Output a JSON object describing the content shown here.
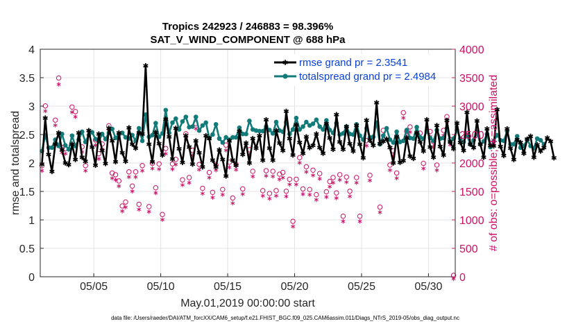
{
  "chart_data": {
    "type": "line",
    "title_line1": "Tropics 242923 / 246883 = 98.396%",
    "title_line2": "SAT_V_WIND_COMPONENT @ 688 hPa",
    "xlabel": "May.01,2019 00:00:00 start",
    "ylabel_left": "rmse and totalspread",
    "ylabel_right": "# of obs: o=possible; ∗=assimilated",
    "footnote": "data file: /Users/raeder/DAI/ATM_forcXX/CAM6_setup/f.e21.FHIST_BGC.f09_025.CAM6assim.011/Diags_NTrS_2019-05/obs_diag_output.nc",
    "xlim": [
      1,
      32
    ],
    "ylim_left": [
      0,
      4
    ],
    "ylim_right": [
      0,
      4000
    ],
    "x_ticks": [
      {
        "x": 5,
        "label": "05/05"
      },
      {
        "x": 10,
        "label": "05/10"
      },
      {
        "x": 15,
        "label": "05/15"
      },
      {
        "x": 20,
        "label": "05/20"
      },
      {
        "x": 25,
        "label": "05/25"
      },
      {
        "x": 30,
        "label": "05/30"
      }
    ],
    "y_ticks_left": [
      "0",
      "0.5",
      "1",
      "1.5",
      "2",
      "2.5",
      "3",
      "3.5",
      "4"
    ],
    "y_ticks_right": [
      "0",
      "500",
      "1000",
      "1500",
      "2000",
      "2500",
      "3000",
      "3500",
      "4000"
    ],
    "grid": true,
    "legend_position": "top-right",
    "x_start": 1.125,
    "x_step": 0.25,
    "series": [
      {
        "name": "rmse grand pr = 2.3541",
        "color": "#000000",
        "marker": "asterisk",
        "axis": "left",
        "values": [
          1.98,
          2.79,
          2.15,
          1.85,
          2.33,
          2.53,
          2.23,
          2.0,
          1.97,
          2.33,
          2.06,
          2.53,
          2.1,
          2.03,
          2.57,
          2.28,
          1.96,
          2.51,
          2.22,
          1.99,
          2.61,
          2.39,
          2.02,
          2.53,
          2.18,
          2.03,
          2.62,
          2.33,
          2.26,
          2.53,
          2.51,
          3.71,
          2.33,
          2.02,
          2.54,
          2.34,
          2.14,
          2.77,
          2.46,
          2.07,
          2.61,
          2.25,
          2.01,
          2.48,
          2.28,
          1.98,
          2.39,
          2.18,
          1.93,
          2.48,
          2.43,
          2.05,
          1.93,
          2.23,
          2.06,
          1.77,
          2.39,
          2.05,
          1.96,
          2.56,
          2.15,
          2.35,
          2.0,
          2.43,
          2.26,
          2.48,
          2.05,
          2.76,
          2.26,
          2.05,
          2.57,
          2.35,
          2.22,
          2.91,
          2.43,
          2.14,
          2.67,
          2.36,
          2.17,
          2.46,
          2.27,
          2.31,
          2.51,
          2.27,
          2.17,
          2.69,
          2.44,
          2.24,
          2.85,
          2.37,
          2.24,
          2.64,
          2.34,
          2.21,
          2.66,
          2.33,
          2.09,
          2.75,
          2.4,
          2.31,
          3.06,
          2.34,
          2.38,
          2.42,
          2.27,
          2.0,
          2.46,
          2.01,
          2.04,
          2.44,
          2.12,
          2.08,
          2.53,
          2.37,
          2.21,
          2.76,
          2.28,
          2.1,
          2.66,
          2.29,
          2.14,
          2.75,
          2.37,
          2.25,
          2.7,
          2.36,
          2.22,
          2.89,
          2.33,
          2.27,
          2.74,
          2.33,
          2.1,
          2.6,
          2.31,
          2.3,
          2.94,
          2.29,
          2.13,
          2.6,
          2.26,
          2.06,
          2.41,
          2.36,
          2.17,
          2.42,
          2.47,
          2.1,
          2.32,
          2.21,
          2.27,
          2.44,
          2.38,
          2.09
        ]
      },
      {
        "name": "totalspread grand pr = 2.4984",
        "color": "#127a78",
        "marker": "circle",
        "axis": "left",
        "values": [
          2.21,
          2.49,
          2.27,
          2.27,
          2.41,
          2.3,
          2.51,
          2.31,
          2.24,
          2.48,
          2.3,
          2.41,
          2.55,
          2.37,
          2.49,
          2.54,
          2.42,
          2.38,
          2.51,
          2.42,
          2.53,
          2.6,
          2.44,
          2.5,
          2.53,
          2.45,
          2.43,
          2.49,
          2.39,
          2.61,
          2.39,
          2.85,
          2.46,
          2.49,
          2.7,
          2.46,
          2.52,
          2.93,
          2.53,
          2.71,
          2.78,
          2.59,
          2.73,
          2.81,
          2.63,
          2.64,
          2.81,
          2.57,
          2.66,
          2.71,
          2.44,
          2.5,
          2.68,
          2.43,
          2.36,
          2.45,
          2.41,
          2.45,
          2.45,
          2.62,
          2.51,
          2.51,
          2.74,
          2.59,
          2.57,
          2.56,
          2.56,
          2.64,
          2.58,
          2.52,
          2.72,
          2.57,
          2.55,
          2.72,
          2.51,
          2.59,
          2.79,
          2.59,
          2.64,
          2.72,
          2.66,
          2.69,
          2.76,
          2.64,
          2.59,
          2.75,
          2.58,
          2.53,
          2.7,
          2.5,
          2.52,
          2.64,
          2.51,
          2.5,
          2.68,
          2.48,
          2.41,
          2.61,
          2.45,
          2.46,
          2.71,
          2.33,
          2.48,
          2.61,
          2.41,
          2.36,
          2.55,
          2.37,
          2.39,
          2.58,
          2.44,
          2.43,
          2.63,
          2.45,
          2.43,
          2.56,
          2.44,
          2.39,
          2.58,
          2.43,
          2.44,
          2.61,
          2.37,
          2.43,
          2.58,
          2.43,
          2.37,
          2.49,
          2.33,
          2.4,
          2.55,
          2.33,
          2.38,
          2.51,
          2.28,
          2.38,
          2.49,
          2.4,
          2.39,
          2.56,
          2.33,
          2.33,
          2.47,
          2.27,
          2.3,
          2.41,
          2.3,
          2.26,
          2.43,
          2.4,
          2.33
        ]
      },
      {
        "name": "possible",
        "color": "#cc1166",
        "marker": "open-circle",
        "axis": "right",
        "points": [
          [
            1.125,
            1930
          ],
          [
            1.38,
            2980
          ],
          [
            2.125,
            2730
          ],
          [
            2.38,
            3470
          ],
          [
            2.625,
            2250
          ],
          [
            2.875,
            2230
          ],
          [
            3.375,
            2960
          ],
          [
            3.625,
            2880
          ],
          [
            4.125,
            2260
          ],
          [
            4.38,
            1930
          ],
          [
            5.125,
            2380
          ],
          [
            5.375,
            2140
          ],
          [
            5.625,
            2310
          ],
          [
            6.125,
            2630
          ],
          [
            6.375,
            1800
          ],
          [
            6.625,
            1770
          ],
          [
            6.875,
            1660
          ],
          [
            7.125,
            1220
          ],
          [
            7.375,
            1290
          ],
          [
            7.625,
            1820
          ],
          [
            7.875,
            1570
          ],
          [
            8.125,
            1820
          ],
          [
            8.375,
            1250
          ],
          [
            8.625,
            1930
          ],
          [
            9.125,
            1210
          ],
          [
            9.375,
            1970
          ],
          [
            9.625,
            1540
          ],
          [
            9.875,
            1960
          ],
          [
            10.125,
            1070
          ],
          [
            10.375,
            2230
          ],
          [
            10.875,
            1960
          ],
          [
            11.125,
            2040
          ],
          [
            11.625,
            1680
          ],
          [
            11.875,
            2490
          ],
          [
            12.125,
            1720
          ],
          [
            12.375,
            2200
          ],
          [
            12.625,
            2670
          ],
          [
            12.875,
            1950
          ],
          [
            13.125,
            1530
          ],
          [
            13.625,
            1810
          ],
          [
            13.875,
            1460
          ],
          [
            14.125,
            1940
          ],
          [
            14.625,
            1510
          ],
          [
            14.875,
            2290
          ],
          [
            15.125,
            1990
          ],
          [
            15.375,
            1360
          ],
          [
            15.625,
            1950
          ],
          [
            16.125,
            1520
          ],
          [
            16.625,
            2210
          ],
          [
            16.875,
            1830
          ],
          [
            17.625,
            1490
          ],
          [
            17.875,
            1840
          ],
          [
            18.125,
            1440
          ],
          [
            18.375,
            1830
          ],
          [
            18.625,
            1490
          ],
          [
            18.875,
            1780
          ],
          [
            19.125,
            1810
          ],
          [
            19.375,
            1480
          ],
          [
            19.625,
            1690
          ],
          [
            19.875,
            950
          ],
          [
            20.125,
            1690
          ],
          [
            20.375,
            2070
          ],
          [
            20.625,
            1520
          ],
          [
            20.875,
            1910
          ],
          [
            21.125,
            1510
          ],
          [
            21.375,
            1850
          ],
          [
            21.625,
            1420
          ],
          [
            21.875,
            1790
          ],
          [
            22.375,
            1470
          ],
          [
            22.625,
            1650
          ],
          [
            22.875,
            1720
          ],
          [
            23.125,
            1450
          ],
          [
            23.375,
            1770
          ],
          [
            23.625,
            1040
          ],
          [
            23.875,
            1730
          ],
          [
            24.125,
            1480
          ],
          [
            24.625,
            1720
          ],
          [
            24.875,
            1040
          ],
          [
            25.375,
            2370
          ],
          [
            25.625,
            1760
          ],
          [
            26.375,
            1200
          ],
          [
            26.625,
            2550
          ],
          [
            27.125,
            1940
          ],
          [
            27.375,
            2190
          ],
          [
            27.625,
            1800
          ],
          [
            28.125,
            2860
          ],
          [
            28.375,
            2530
          ],
          [
            28.625,
            2610
          ],
          [
            29.375,
            2500
          ],
          [
            29.625,
            1970
          ],
          [
            30.125,
            2530
          ],
          [
            30.375,
            2350
          ],
          [
            30.625,
            1940
          ],
          [
            31.125,
            2550
          ],
          [
            31.375,
            2790
          ],
          [
            31.625,
            2390
          ],
          [
            31.875,
            0
          ]
        ]
      },
      {
        "name": "assimilated",
        "color": "#cc1166",
        "marker": "asterisk",
        "axis": "right",
        "points": [
          [
            1.125,
            1900
          ],
          [
            1.38,
            2950
          ],
          [
            2.125,
            2700
          ],
          [
            2.38,
            3420
          ],
          [
            2.625,
            2220
          ],
          [
            2.875,
            2200
          ],
          [
            3.375,
            2930
          ],
          [
            3.625,
            2850
          ],
          [
            4.125,
            2230
          ],
          [
            4.38,
            1900
          ],
          [
            5.125,
            2350
          ],
          [
            5.375,
            2110
          ],
          [
            5.625,
            2280
          ],
          [
            6.125,
            2600
          ],
          [
            6.375,
            1770
          ],
          [
            6.625,
            1740
          ],
          [
            6.875,
            1630
          ],
          [
            7.125,
            1190
          ],
          [
            7.375,
            1260
          ],
          [
            7.625,
            1790
          ],
          [
            7.875,
            1540
          ],
          [
            8.125,
            1790
          ],
          [
            8.375,
            1220
          ],
          [
            8.625,
            1900
          ],
          [
            9.125,
            1180
          ],
          [
            9.375,
            1940
          ],
          [
            9.625,
            1510
          ],
          [
            9.875,
            1930
          ],
          [
            10.125,
            1040
          ],
          [
            10.375,
            2200
          ],
          [
            10.875,
            1930
          ],
          [
            11.125,
            2010
          ],
          [
            11.625,
            1650
          ],
          [
            11.875,
            2460
          ],
          [
            12.125,
            1690
          ],
          [
            12.375,
            2170
          ],
          [
            12.625,
            2640
          ],
          [
            12.875,
            1920
          ],
          [
            13.125,
            1500
          ],
          [
            13.625,
            1780
          ],
          [
            13.875,
            1430
          ],
          [
            14.125,
            1910
          ],
          [
            14.625,
            1480
          ],
          [
            14.875,
            2260
          ],
          [
            15.125,
            1960
          ],
          [
            15.375,
            1330
          ],
          [
            15.625,
            1920
          ],
          [
            16.125,
            1490
          ],
          [
            16.625,
            2180
          ],
          [
            16.875,
            1800
          ],
          [
            17.625,
            1460
          ],
          [
            17.875,
            1810
          ],
          [
            18.125,
            1410
          ],
          [
            18.375,
            1800
          ],
          [
            18.625,
            1460
          ],
          [
            18.875,
            1750
          ],
          [
            19.125,
            1780
          ],
          [
            19.375,
            1450
          ],
          [
            19.625,
            1660
          ],
          [
            19.875,
            920
          ],
          [
            20.125,
            1660
          ],
          [
            20.375,
            2040
          ],
          [
            20.625,
            1490
          ],
          [
            20.875,
            1880
          ],
          [
            21.125,
            1480
          ],
          [
            21.375,
            1820
          ],
          [
            21.625,
            1390
          ],
          [
            21.875,
            1760
          ],
          [
            22.375,
            1440
          ],
          [
            22.625,
            1620
          ],
          [
            22.875,
            1690
          ],
          [
            23.125,
            1420
          ],
          [
            23.375,
            1740
          ],
          [
            23.625,
            1010
          ],
          [
            23.875,
            1700
          ],
          [
            24.125,
            1450
          ],
          [
            24.625,
            1690
          ],
          [
            24.875,
            1010
          ],
          [
            25.375,
            2340
          ],
          [
            25.625,
            1730
          ],
          [
            26.375,
            1170
          ],
          [
            26.625,
            2520
          ],
          [
            27.125,
            1910
          ],
          [
            27.375,
            2160
          ],
          [
            27.625,
            1770
          ],
          [
            28.125,
            2830
          ],
          [
            28.375,
            2500
          ],
          [
            28.625,
            2580
          ],
          [
            29.375,
            2470
          ],
          [
            29.625,
            1940
          ],
          [
            30.125,
            2500
          ],
          [
            30.375,
            2320
          ],
          [
            30.625,
            1910
          ],
          [
            31.125,
            2520
          ],
          [
            31.375,
            2760
          ],
          [
            31.625,
            2360
          ],
          [
            31.875,
            0
          ]
        ]
      }
    ]
  }
}
